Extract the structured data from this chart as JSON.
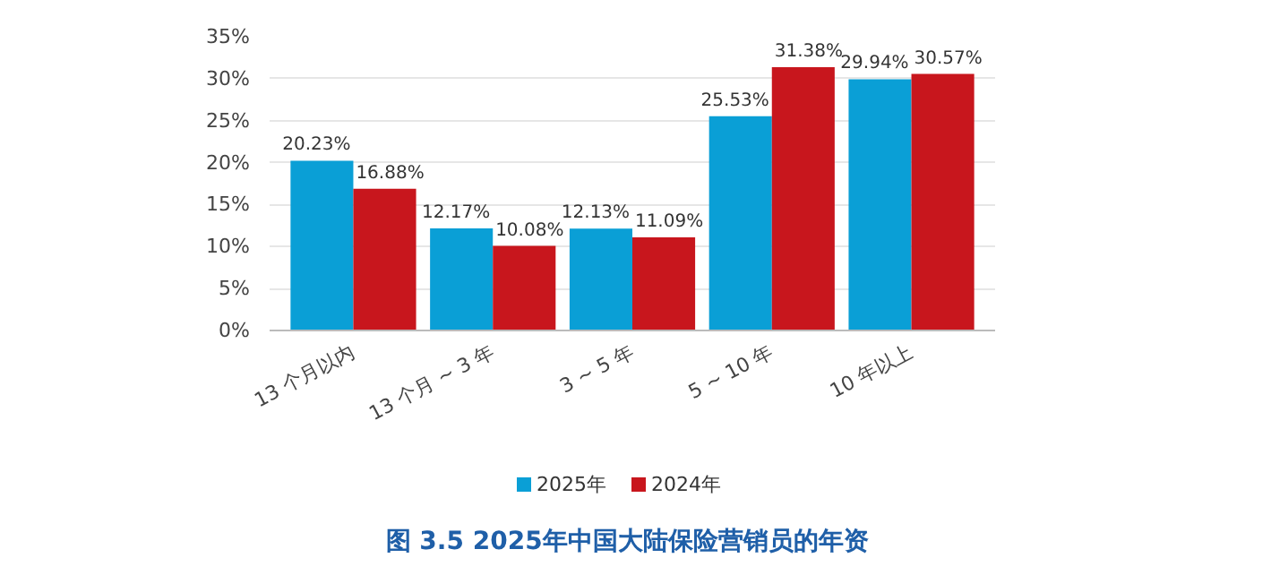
{
  "chart_data": {
    "type": "bar",
    "title": "图 3.5  2025年中国大陆保险营销员的年资",
    "categories": [
      "13 个月以内",
      "13 个月 ~ 3 年",
      "3 ~ 5 年",
      "5 ~ 10 年",
      "10 年以上"
    ],
    "series": [
      {
        "name": "2025年",
        "color": "#0a9fd6",
        "values": [
          20.23,
          12.17,
          12.13,
          25.53,
          29.94
        ],
        "value_labels": [
          "20.23%",
          "12.17%",
          "12.13%",
          "25.53%",
          "29.94%"
        ]
      },
      {
        "name": "2024年",
        "color": "#c8161d",
        "values": [
          16.88,
          10.08,
          11.09,
          31.38,
          30.57
        ],
        "value_labels": [
          "16.88%",
          "10.08%",
          "11.09%",
          "31.38%",
          "30.57%"
        ]
      }
    ],
    "ylim": [
      0,
      35
    ],
    "yticks": [
      {
        "value": 0,
        "label": "0%"
      },
      {
        "value": 5,
        "label": "5%"
      },
      {
        "value": 10,
        "label": "10%"
      },
      {
        "value": 15,
        "label": "15%"
      },
      {
        "value": 20,
        "label": "20%"
      },
      {
        "value": 25,
        "label": "25%"
      },
      {
        "value": 30,
        "label": "30%"
      },
      {
        "value": 35,
        "label": "35%"
      }
    ],
    "grid": "y",
    "legend": "bottom"
  }
}
